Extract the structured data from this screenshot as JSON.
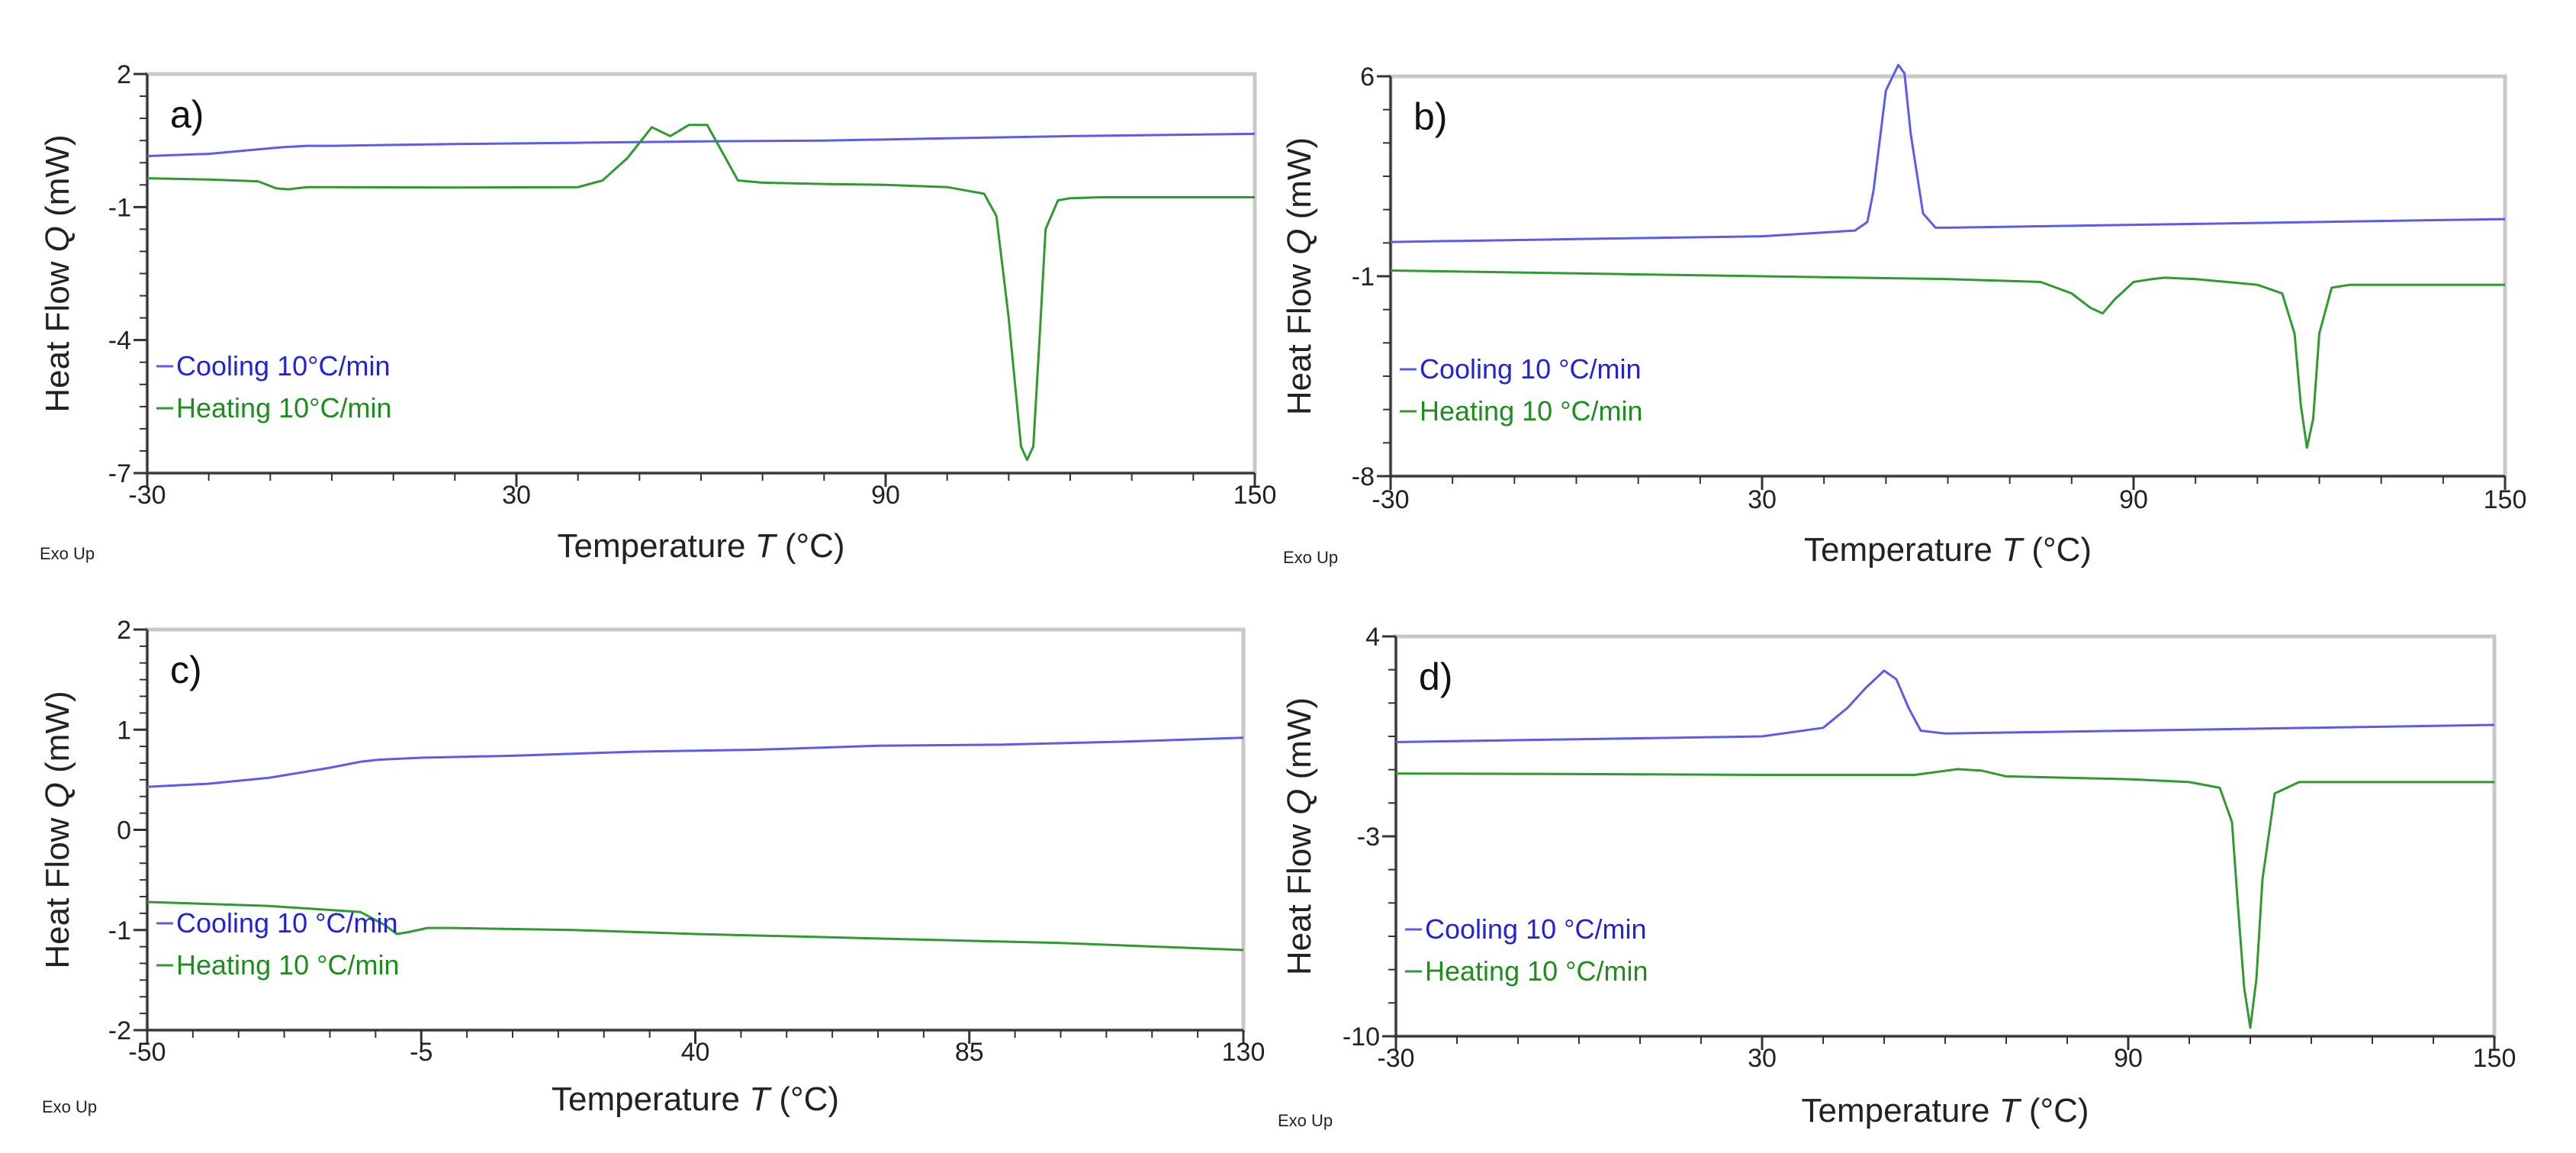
{
  "figure": {
    "exo_label": "Exo Up"
  },
  "colors": {
    "cooling": "#5b5bf0",
    "heating": "#2f9a2f",
    "axis": "#333333",
    "frame": "#c8c8c8"
  },
  "chart_data": [
    {
      "type": "line",
      "panel_label": "a)",
      "xlabel": "Temperature T (°C)",
      "ylabel": "Heat Flow Q (mW)",
      "xlim": [
        -30,
        150
      ],
      "ylim": [
        -7,
        2
      ],
      "xticks": [
        -30,
        30,
        90,
        150
      ],
      "yticks": [
        2,
        -1,
        -4,
        -7
      ],
      "legend": [
        "Cooling 10°C/min",
        "Heating 10°C/min"
      ],
      "series": [
        {
          "name": "Cooling 10°C/min",
          "x": [
            -30,
            -20,
            -12,
            -8,
            -4,
            0,
            20,
            40,
            60,
            80,
            100,
            120,
            150
          ],
          "y": [
            0.15,
            0.2,
            0.3,
            0.35,
            0.38,
            0.38,
            0.42,
            0.45,
            0.48,
            0.5,
            0.55,
            0.6,
            0.65
          ]
        },
        {
          "name": "Heating 10°C/min",
          "x": [
            -30,
            -20,
            -12,
            -9,
            -7,
            -4,
            0,
            20,
            40,
            44,
            48,
            52,
            55,
            58,
            61,
            64,
            66,
            70,
            80,
            90,
            100,
            106,
            108,
            110,
            112,
            113,
            114,
            115,
            116,
            118,
            120,
            125,
            150
          ],
          "y": [
            -0.35,
            -0.38,
            -0.42,
            -0.58,
            -0.6,
            -0.55,
            -0.55,
            -0.56,
            -0.55,
            -0.4,
            0.1,
            0.8,
            0.6,
            0.85,
            0.85,
            0.1,
            -0.4,
            -0.45,
            -0.48,
            -0.5,
            -0.55,
            -0.7,
            -1.2,
            -3.5,
            -6.4,
            -6.7,
            -6.4,
            -4.0,
            -1.5,
            -0.85,
            -0.8,
            -0.78,
            -0.78
          ]
        }
      ]
    },
    {
      "type": "line",
      "panel_label": "b)",
      "xlabel": "Temperature T (°C)",
      "ylabel": "Heat Flow Q (mW)",
      "xlim": [
        -30,
        150
      ],
      "ylim": [
        -8,
        6
      ],
      "xticks": [
        -30,
        30,
        90,
        150
      ],
      "yticks": [
        6,
        -1,
        -8
      ],
      "legend": [
        "Cooling 10 °C/min",
        "Heating 10 °C/min"
      ],
      "series": [
        {
          "name": "Cooling 10 °C/min",
          "x": [
            -30,
            0,
            30,
            45,
            47,
            48,
            50,
            52,
            53,
            54,
            56,
            58,
            60,
            90,
            120,
            150
          ],
          "y": [
            0.2,
            0.3,
            0.4,
            0.6,
            0.9,
            2.0,
            5.5,
            6.4,
            6.1,
            4.0,
            1.2,
            0.7,
            0.7,
            0.8,
            0.9,
            1.0
          ]
        },
        {
          "name": "Heating 10 °C/min",
          "x": [
            -30,
            0,
            30,
            60,
            75,
            80,
            83,
            85,
            87,
            90,
            93,
            95,
            100,
            110,
            114,
            116,
            117,
            118,
            119,
            120,
            122,
            125,
            150
          ],
          "y": [
            -0.8,
            -0.9,
            -1.0,
            -1.1,
            -1.2,
            -1.6,
            -2.1,
            -2.3,
            -1.8,
            -1.2,
            -1.1,
            -1.05,
            -1.1,
            -1.3,
            -1.6,
            -3.0,
            -5.5,
            -7.0,
            -6.0,
            -3.0,
            -1.4,
            -1.3,
            -1.3
          ]
        }
      ]
    },
    {
      "type": "line",
      "panel_label": "c)",
      "xlabel": "Temperature T (°C)",
      "ylabel": "Heat Flow Q (mW)",
      "xlim": [
        -50,
        130
      ],
      "ylim": [
        -2,
        2
      ],
      "xticks": [
        -50,
        -5,
        40,
        85,
        130
      ],
      "yticks": [
        2,
        1,
        0,
        -1,
        -2
      ],
      "legend": [
        "Cooling 10 °C/min",
        "Heating 10 °C/min"
      ],
      "series": [
        {
          "name": "Cooling 10 °C/min",
          "x": [
            -50,
            -40,
            -30,
            -20,
            -15,
            -12,
            -5,
            10,
            30,
            50,
            70,
            90,
            110,
            130
          ],
          "y": [
            0.43,
            0.46,
            0.52,
            0.62,
            0.68,
            0.7,
            0.72,
            0.74,
            0.78,
            0.8,
            0.84,
            0.85,
            0.88,
            0.92
          ]
        },
        {
          "name": "Heating 10 °C/min",
          "x": [
            -50,
            -30,
            -15,
            -11,
            -9,
            -7,
            -4,
            0,
            20,
            40,
            60,
            80,
            100,
            130
          ],
          "y": [
            -0.72,
            -0.76,
            -0.82,
            -0.95,
            -1.04,
            -1.02,
            -0.98,
            -0.98,
            -1.0,
            -1.04,
            -1.07,
            -1.1,
            -1.13,
            -1.2
          ]
        }
      ]
    },
    {
      "type": "line",
      "panel_label": "d)",
      "xlabel": "Temperature T (°C)",
      "ylabel": "Heat Flow Q (mW)",
      "xlim": [
        -30,
        150
      ],
      "ylim": [
        -10,
        4
      ],
      "xticks": [
        -30,
        30,
        90,
        150
      ],
      "yticks": [
        4,
        -3,
        -10
      ],
      "legend": [
        "Cooling 10 °C/min",
        "Heating 10 °C/min"
      ],
      "series": [
        {
          "name": "Cooling 10 °C/min",
          "x": [
            -30,
            0,
            30,
            40,
            44,
            47,
            50,
            52,
            54,
            56,
            60,
            90,
            120,
            150
          ],
          "y": [
            0.3,
            0.4,
            0.5,
            0.8,
            1.5,
            2.2,
            2.8,
            2.5,
            1.5,
            0.7,
            0.6,
            0.7,
            0.8,
            0.9
          ]
        },
        {
          "name": "Heating 10 °C/min",
          "x": [
            -30,
            0,
            30,
            55,
            62,
            66,
            70,
            90,
            100,
            105,
            107,
            108,
            109,
            110,
            111,
            112,
            114,
            118,
            150
          ],
          "y": [
            -0.8,
            -0.82,
            -0.85,
            -0.85,
            -0.65,
            -0.7,
            -0.9,
            -1.0,
            -1.1,
            -1.3,
            -2.5,
            -5.5,
            -8.3,
            -9.7,
            -8.0,
            -4.5,
            -1.5,
            -1.1,
            -1.1
          ]
        }
      ]
    }
  ]
}
